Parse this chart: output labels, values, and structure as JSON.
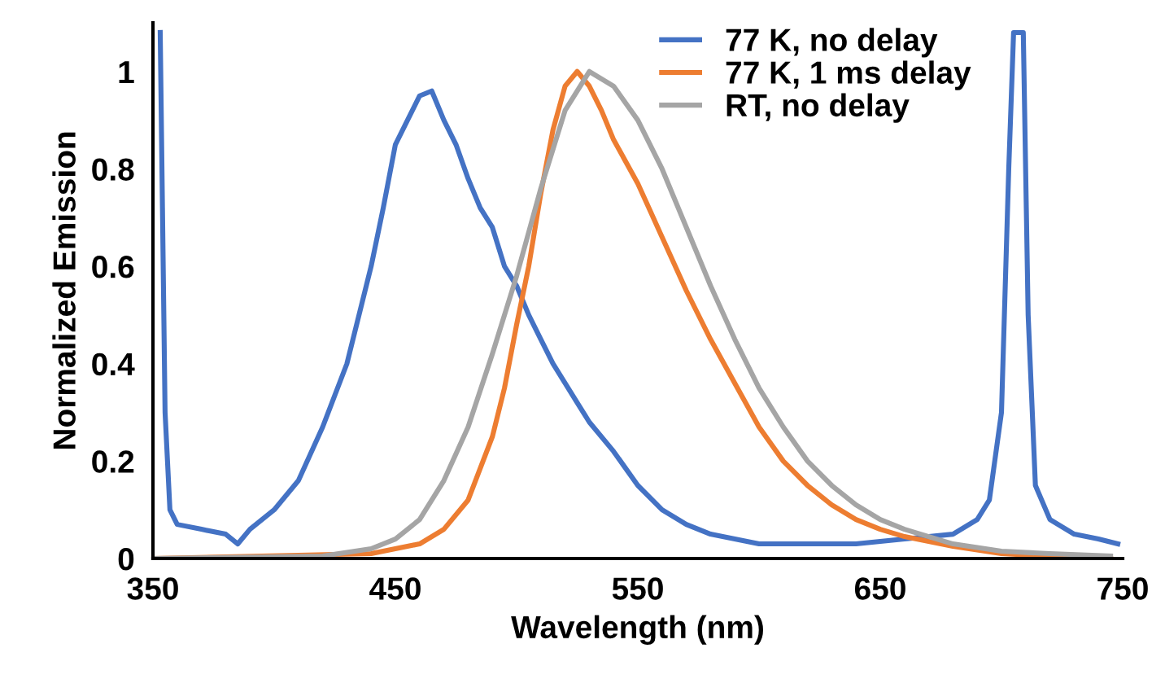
{
  "chart_data": {
    "type": "line",
    "xlabel": "Wavelength (nm)",
    "ylabel": "Normalized Emission",
    "xlim": [
      350,
      750
    ],
    "xticks": [
      350,
      450,
      550,
      650,
      750
    ],
    "ylim": [
      0,
      1.1
    ],
    "yticks": [
      0,
      0.2,
      0.4,
      0.6,
      0.8,
      {
        "value": 1,
        "label": "1"
      }
    ],
    "grid": false,
    "legend": "top right",
    "marker": "none",
    "line_style": "solid",
    "series": [
      {
        "name": "77 K, no delay",
        "color": "#4472c4",
        "x": [
          353,
          355,
          357,
          360,
          370,
          380,
          385,
          390,
          400,
          410,
          420,
          430,
          440,
          445,
          450,
          455,
          460,
          465,
          470,
          475,
          480,
          485,
          490,
          495,
          500,
          505,
          510,
          515,
          520,
          525,
          530,
          540,
          550,
          560,
          570,
          580,
          590,
          600,
          620,
          640,
          660,
          680,
          690,
          695,
          700,
          703,
          705,
          709,
          711,
          714,
          720,
          730,
          740,
          748
        ],
        "values": [
          1.08,
          0.3,
          0.1,
          0.07,
          0.06,
          0.05,
          0.03,
          0.06,
          0.1,
          0.16,
          0.27,
          0.4,
          0.6,
          0.72,
          0.85,
          0.9,
          0.95,
          0.96,
          0.9,
          0.85,
          0.78,
          0.72,
          0.68,
          0.6,
          0.56,
          0.5,
          0.45,
          0.4,
          0.36,
          0.32,
          0.28,
          0.22,
          0.15,
          0.1,
          0.07,
          0.05,
          0.04,
          0.03,
          0.03,
          0.03,
          0.04,
          0.05,
          0.08,
          0.12,
          0.3,
          0.8,
          1.08,
          1.08,
          0.5,
          0.15,
          0.08,
          0.05,
          0.04,
          0.03
        ]
      },
      {
        "name": "77 K, 1 ms delay",
        "color": "#ed7d31",
        "x": [
          350,
          440,
          460,
          470,
          480,
          490,
          495,
          500,
          505,
          510,
          515,
          520,
          525,
          530,
          535,
          540,
          550,
          560,
          570,
          580,
          590,
          600,
          610,
          620,
          630,
          640,
          650,
          660,
          680,
          700,
          720,
          745
        ],
        "values": [
          0,
          0.01,
          0.03,
          0.06,
          0.12,
          0.25,
          0.35,
          0.48,
          0.6,
          0.75,
          0.88,
          0.97,
          1.0,
          0.97,
          0.92,
          0.86,
          0.77,
          0.66,
          0.55,
          0.45,
          0.36,
          0.27,
          0.2,
          0.15,
          0.11,
          0.08,
          0.06,
          0.045,
          0.025,
          0.01,
          0.005,
          0
        ]
      },
      {
        "name": "RT, no delay",
        "color": "#a5a5a5",
        "x": [
          350,
          420,
          440,
          450,
          460,
          470,
          480,
          490,
          500,
          510,
          520,
          530,
          540,
          550,
          560,
          570,
          580,
          590,
          600,
          610,
          620,
          630,
          640,
          650,
          660,
          680,
          700,
          720,
          745
        ],
        "values": [
          0,
          0.005,
          0.02,
          0.04,
          0.08,
          0.16,
          0.27,
          0.42,
          0.58,
          0.76,
          0.92,
          1.0,
          0.97,
          0.9,
          0.8,
          0.68,
          0.56,
          0.45,
          0.35,
          0.27,
          0.2,
          0.15,
          0.11,
          0.08,
          0.06,
          0.03,
          0.015,
          0.01,
          0.005
        ]
      }
    ]
  }
}
